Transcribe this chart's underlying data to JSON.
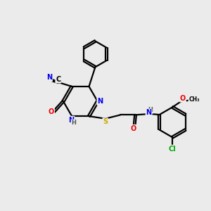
{
  "bg_color": "#ebebeb",
  "atom_colors": {
    "C": "#000000",
    "N": "#0000ee",
    "O": "#ee0000",
    "S": "#ccaa00",
    "Cl": "#00aa00",
    "H": "#555555"
  },
  "bond_color": "#000000",
  "bond_width": 1.6,
  "dbo": 0.055,
  "xlim": [
    0,
    10
  ],
  "ylim": [
    0,
    10
  ]
}
